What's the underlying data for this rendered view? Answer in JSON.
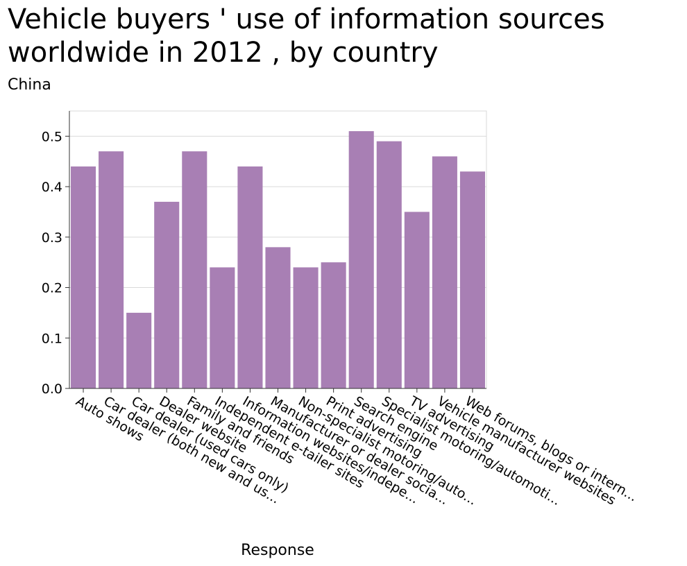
{
  "chart_data": {
    "type": "bar",
    "title": "Vehicle buyers ' use of information sources worldwide in 2012 , by country",
    "subtitle": "China",
    "xlabel": "Response",
    "ylabel": "",
    "ylim": [
      0,
      0.55
    ],
    "yticks": [
      "0.0",
      "0.1",
      "0.2",
      "0.3",
      "0.4",
      "0.5"
    ],
    "grid": true,
    "bar_color": "#a87fb4",
    "categories": [
      "Auto shows",
      "Car dealer (both new and us...",
      "Car dealer (used cars only)",
      "Dealer website",
      "Family and friends",
      "Independent e-tailer sites",
      "Information websites/indepe...",
      "Manufacturer or dealer socia...",
      "Non-specialist motoring/auto...",
      "Print advertising",
      "Search engine",
      "Specialist motoring/automoti...",
      "TV advertising",
      "Vehicle manufacturer websites",
      "Web forums, blogs or intern..."
    ],
    "values": [
      0.44,
      0.47,
      0.15,
      0.37,
      0.47,
      0.24,
      0.44,
      0.28,
      0.24,
      0.25,
      0.51,
      0.49,
      0.35,
      0.46,
      0.43
    ]
  }
}
